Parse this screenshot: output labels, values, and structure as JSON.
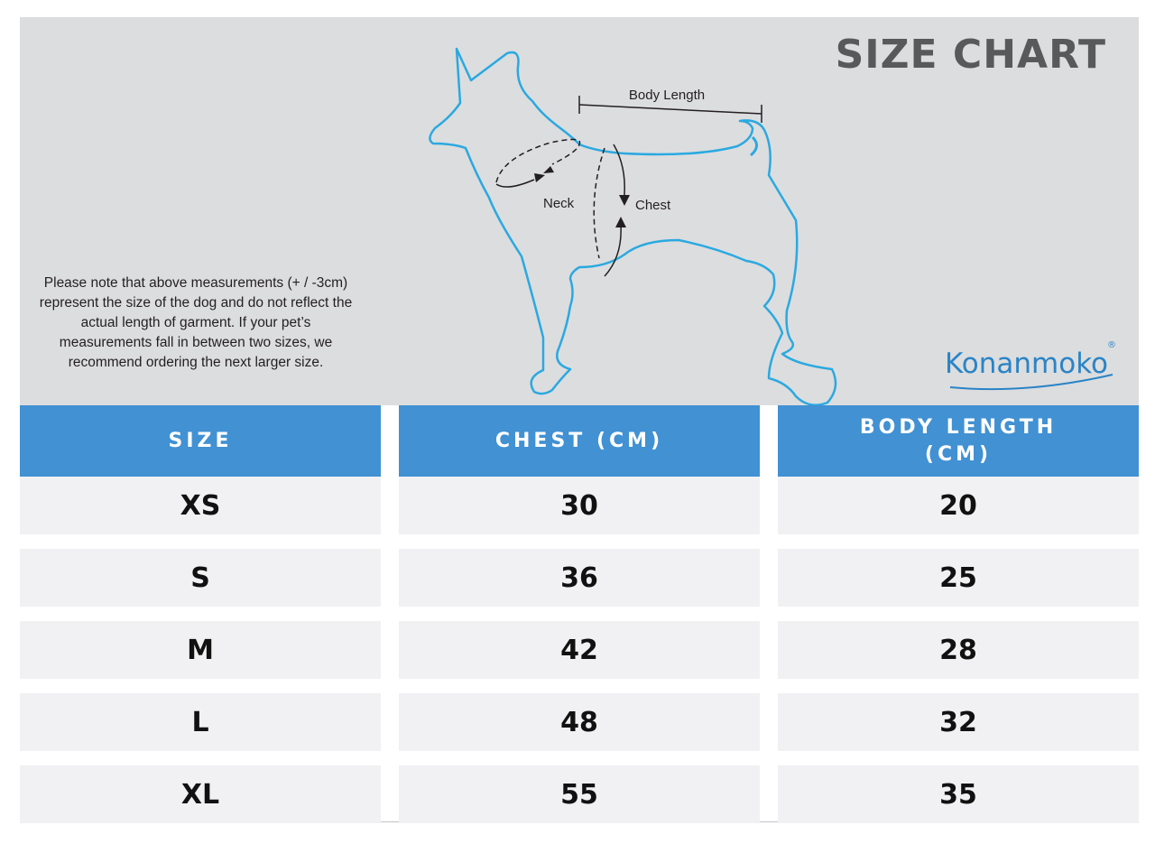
{
  "title": "SIZE CHART",
  "note": "Please note that above measurements (+ / -3cm) represent the size of the dog and do not reflect the actual length of garment.  If your pet’s measurements fall in between two sizes, we recommend ordering the next larger size.",
  "diagram_labels": {
    "body_length": "Body Length",
    "neck": "Neck",
    "chest": "Chest"
  },
  "brand": {
    "name": "Konanmoko",
    "registered": "®",
    "color": "#2a84c6"
  },
  "colors": {
    "header_blue": "#4191d3",
    "outline_blue": "#2aa9e0",
    "panel_gray": "#dcdddf",
    "row_gray": "#f1f1f3"
  },
  "table": {
    "headers": [
      "SIZE",
      "CHEST (CM)",
      "BODY LENGTH (CM)"
    ],
    "rows": [
      {
        "size": "XS",
        "chest": "30",
        "body_length": "20"
      },
      {
        "size": "S",
        "chest": "36",
        "body_length": "25"
      },
      {
        "size": "M",
        "chest": "42",
        "body_length": "28"
      },
      {
        "size": "L",
        "chest": "48",
        "body_length": "32"
      },
      {
        "size": "XL",
        "chest": "55",
        "body_length": "35"
      }
    ]
  }
}
